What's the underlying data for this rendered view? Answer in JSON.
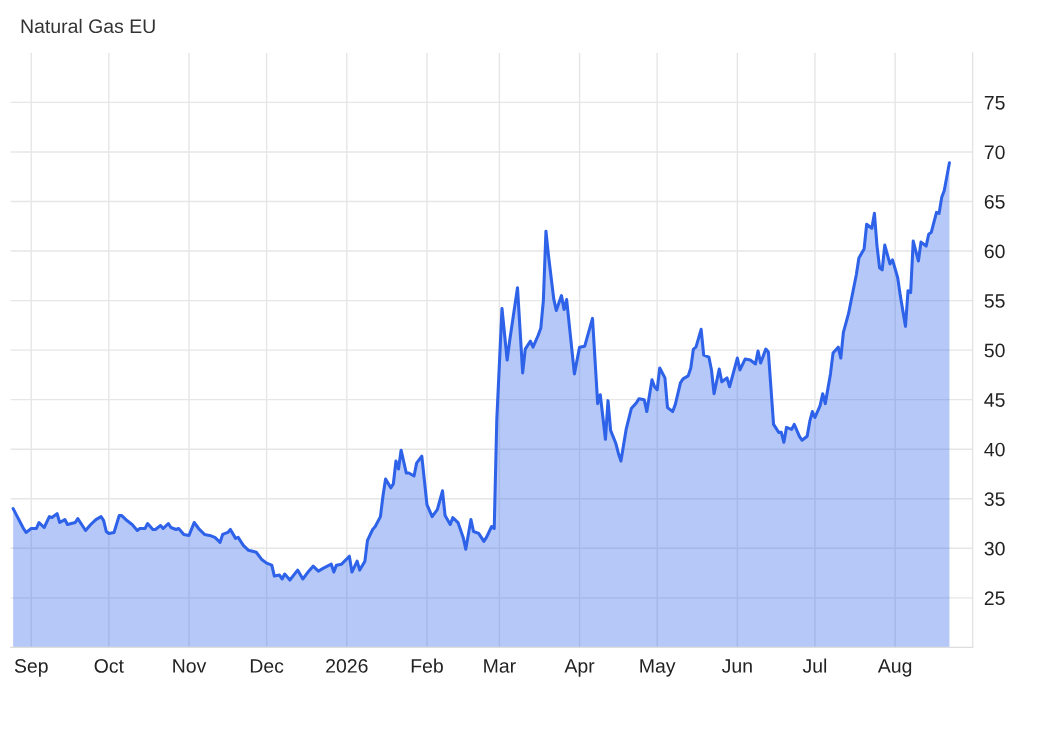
{
  "chart_data": {
    "type": "area",
    "title": "Natural Gas EU",
    "xlim": [
      "2025-08-24",
      "2026-08-31"
    ],
    "xticks": [
      {
        "value": "2025-09-01",
        "label": "Sep"
      },
      {
        "value": "2025-10-01",
        "label": "Oct"
      },
      {
        "value": "2025-11-01",
        "label": "Nov"
      },
      {
        "value": "2025-12-01",
        "label": "Dec"
      },
      {
        "value": "2026-01-01",
        "label": "2026"
      },
      {
        "value": "2026-02-01",
        "label": "Feb"
      },
      {
        "value": "2026-03-01",
        "label": "Mar"
      },
      {
        "value": "2026-04-01",
        "label": "Apr"
      },
      {
        "value": "2026-05-01",
        "label": "May"
      },
      {
        "value": "2026-06-01",
        "label": "Jun"
      },
      {
        "value": "2026-07-01",
        "label": "Jul"
      },
      {
        "value": "2026-08-01",
        "label": "Aug"
      }
    ],
    "ylim": [
      20,
      80
    ],
    "yticks": [
      25,
      30,
      35,
      40,
      45,
      50,
      55,
      60,
      65,
      70,
      75
    ],
    "grid": true,
    "legend": false,
    "series": [
      {
        "color": "#2e62e8",
        "x": [
          "2025-08-25",
          "2025-08-26",
          "2025-08-29",
          "2025-08-30",
          "2025-09-01",
          "2025-09-03",
          "2025-09-04",
          "2025-09-06",
          "2025-09-08",
          "2025-09-09",
          "2025-09-11",
          "2025-09-12",
          "2025-09-14",
          "2025-09-15",
          "2025-09-18",
          "2025-09-19",
          "2025-09-21",
          "2025-09-22",
          "2025-09-24",
          "2025-09-26",
          "2025-09-28",
          "2025-09-29",
          "2025-09-30",
          "2025-10-01",
          "2025-10-03",
          "2025-10-05",
          "2025-10-06",
          "2025-10-08",
          "2025-10-10",
          "2025-10-12",
          "2025-10-13",
          "2025-10-15",
          "2025-10-16",
          "2025-10-18",
          "2025-10-19",
          "2025-10-21",
          "2025-10-22",
          "2025-10-24",
          "2025-10-25",
          "2025-10-27",
          "2025-10-28",
          "2025-10-30",
          "2025-11-01",
          "2025-11-03",
          "2025-11-05",
          "2025-11-07",
          "2025-11-09",
          "2025-11-11",
          "2025-11-13",
          "2025-11-14",
          "2025-11-16",
          "2025-11-17",
          "2025-11-19",
          "2025-11-20",
          "2025-11-22",
          "2025-11-24",
          "2025-11-27",
          "2025-11-29",
          "2025-12-01",
          "2025-12-03",
          "2025-12-04",
          "2025-12-06",
          "2025-12-07",
          "2025-12-08",
          "2025-12-10",
          "2025-12-13",
          "2025-12-15",
          "2025-12-17",
          "2025-12-19",
          "2025-12-21",
          "2025-12-23",
          "2025-12-26",
          "2025-12-27",
          "2025-12-28",
          "2025-12-30",
          "2026-01-02",
          "2026-01-03",
          "2026-01-05",
          "2026-01-06",
          "2026-01-08",
          "2026-01-09",
          "2026-01-11",
          "2026-01-12",
          "2026-01-14",
          "2026-01-15",
          "2026-01-16",
          "2026-01-18",
          "2026-01-19",
          "2026-01-20",
          "2026-01-21",
          "2026-01-22",
          "2026-01-24",
          "2026-01-25",
          "2026-01-27",
          "2026-01-28",
          "2026-01-30",
          "2026-02-01",
          "2026-02-03",
          "2026-02-05",
          "2026-02-07",
          "2026-02-08",
          "2026-02-10",
          "2026-02-11",
          "2026-02-13",
          "2026-02-15",
          "2026-02-16",
          "2026-02-18",
          "2026-02-19",
          "2026-02-21",
          "2026-02-23",
          "2026-02-24",
          "2026-02-26",
          "2026-02-27",
          "2026-02-28",
          "2026-03-02",
          "2026-03-04",
          "2026-03-05",
          "2026-03-08",
          "2026-03-10",
          "2026-03-11",
          "2026-03-13",
          "2026-03-14",
          "2026-03-16",
          "2026-03-17",
          "2026-03-18",
          "2026-03-19",
          "2026-03-20",
          "2026-03-22",
          "2026-03-23",
          "2026-03-25",
          "2026-03-26",
          "2026-03-27",
          "2026-03-29",
          "2026-03-30",
          "2026-04-01",
          "2026-04-03",
          "2026-04-06",
          "2026-04-08",
          "2026-04-09",
          "2026-04-11",
          "2026-04-12",
          "2026-04-13",
          "2026-04-15",
          "2026-04-16",
          "2026-04-17",
          "2026-04-19",
          "2026-04-21",
          "2026-04-23",
          "2026-04-24",
          "2026-04-26",
          "2026-04-27",
          "2026-04-29",
          "2026-04-30",
          "2026-05-01",
          "2026-05-02",
          "2026-05-04",
          "2026-05-05",
          "2026-05-07",
          "2026-05-08",
          "2026-05-10",
          "2026-05-11",
          "2026-05-13",
          "2026-05-14",
          "2026-05-15",
          "2026-05-16",
          "2026-05-18",
          "2026-05-19",
          "2026-05-21",
          "2026-05-22",
          "2026-05-23",
          "2026-05-25",
          "2026-05-26",
          "2026-05-28",
          "2026-05-29",
          "2026-06-01",
          "2026-06-02",
          "2026-06-04",
          "2026-06-06",
          "2026-06-08",
          "2026-06-09",
          "2026-06-10",
          "2026-06-12",
          "2026-06-13",
          "2026-06-15",
          "2026-06-17",
          "2026-06-18",
          "2026-06-19",
          "2026-06-20",
          "2026-06-22",
          "2026-06-23",
          "2026-06-25",
          "2026-06-26",
          "2026-06-28",
          "2026-06-29",
          "2026-06-30",
          "2026-07-01",
          "2026-07-03",
          "2026-07-04",
          "2026-07-05",
          "2026-07-07",
          "2026-07-08",
          "2026-07-10",
          "2026-07-11",
          "2026-07-12",
          "2026-07-14",
          "2026-07-15",
          "2026-07-17",
          "2026-07-18",
          "2026-07-20",
          "2026-07-21",
          "2026-07-23",
          "2026-07-24",
          "2026-07-25",
          "2026-07-26",
          "2026-07-27",
          "2026-07-28",
          "2026-07-30",
          "2026-07-31",
          "2026-08-02",
          "2026-08-03",
          "2026-08-05",
          "2026-08-06",
          "2026-08-07",
          "2026-08-08",
          "2026-08-10",
          "2026-08-11",
          "2026-08-13",
          "2026-08-14",
          "2026-08-15",
          "2026-08-17",
          "2026-08-18",
          "2026-08-19",
          "2026-08-20",
          "2026-08-22"
        ],
        "values": [
          34.0,
          33.5,
          32.0,
          31.6,
          32.0,
          32.0,
          32.6,
          32.1,
          33.2,
          33.1,
          33.5,
          32.6,
          32.9,
          32.4,
          32.6,
          33.0,
          32.2,
          31.8,
          32.4,
          32.9,
          33.2,
          32.8,
          31.7,
          31.5,
          31.6,
          33.3,
          33.3,
          32.8,
          32.4,
          31.8,
          32.0,
          32.0,
          32.5,
          31.9,
          31.9,
          32.3,
          32.0,
          32.5,
          32.1,
          31.9,
          32.0,
          31.4,
          31.3,
          32.6,
          31.9,
          31.4,
          31.3,
          31.1,
          30.6,
          31.4,
          31.6,
          31.9,
          31.0,
          31.1,
          30.3,
          29.8,
          29.6,
          28.9,
          28.5,
          28.3,
          27.2,
          27.3,
          26.9,
          27.4,
          26.8,
          27.8,
          26.9,
          27.6,
          28.2,
          27.7,
          28.0,
          28.4,
          27.6,
          28.3,
          28.4,
          29.2,
          27.6,
          28.7,
          27.8,
          28.7,
          30.8,
          31.9,
          32.2,
          33.2,
          35.3,
          37.0,
          36.1,
          36.5,
          38.8,
          38.0,
          39.9,
          37.6,
          37.6,
          37.3,
          38.6,
          39.3,
          34.4,
          33.2,
          33.9,
          35.8,
          33.3,
          32.4,
          33.1,
          32.6,
          31.1,
          29.9,
          32.9,
          31.7,
          31.5,
          30.7,
          31.1,
          32.2,
          32.0,
          43.0,
          54.2,
          49.0,
          51.0,
          56.3,
          47.7,
          50.1,
          50.9,
          50.3,
          51.5,
          52.2,
          55.0,
          62.0,
          59.5,
          55.2,
          54.0,
          55.5,
          54.1,
          55.1,
          50.1,
          47.6,
          50.3,
          50.4,
          53.2,
          44.6,
          45.5,
          41.0,
          44.9,
          41.9,
          40.6,
          39.6,
          38.8,
          42.0,
          44.1,
          44.7,
          45.1,
          45.0,
          43.8,
          47.0,
          46.3,
          46.0,
          48.2,
          47.2,
          44.2,
          43.8,
          44.5,
          46.7,
          47.1,
          47.4,
          48.2,
          50.1,
          50.3,
          52.1,
          49.5,
          49.3,
          48.0,
          45.6,
          48.1,
          46.8,
          47.2,
          46.3,
          49.2,
          48.0,
          49.1,
          49.0,
          48.6,
          49.9,
          48.7,
          50.1,
          49.8,
          42.5,
          41.7,
          41.7,
          40.7,
          42.2,
          42.0,
          42.5,
          41.3,
          40.9,
          41.3,
          42.8,
          43.8,
          43.2,
          44.4,
          45.6,
          44.6,
          47.6,
          49.7,
          50.3,
          49.2,
          51.8,
          53.7,
          55.0,
          57.6,
          59.3,
          60.2,
          62.7,
          62.3,
          63.8,
          60.5,
          58.3,
          58.1,
          60.6,
          58.7,
          59.1,
          57.3,
          55.5,
          52.4,
          56.0,
          55.8,
          61.0,
          59.0,
          60.9,
          60.5,
          61.7,
          61.9,
          63.9,
          63.8,
          65.4,
          66.1,
          68.9
        ]
      }
    ]
  }
}
